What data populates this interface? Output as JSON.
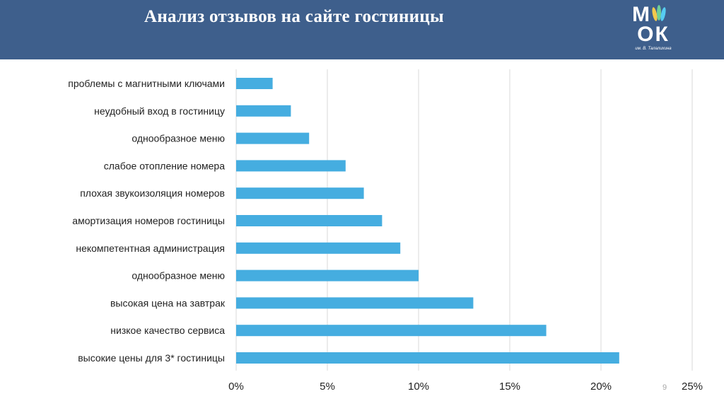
{
  "header": {
    "title": "Анализ отзывов на сайте гостиницы"
  },
  "logo": {
    "line1": "М",
    "line1b": "",
    "line2": "ОК",
    "subtitle": "им. В. Талалихина"
  },
  "page_number": "9",
  "colors": {
    "header_bg": "#3e5f8c",
    "bar": "#45ade0",
    "grid": "#d9d9d9"
  },
  "chart_data": {
    "type": "bar",
    "orientation": "horizontal",
    "categories": [
      "проблемы с магнитными ключами",
      "неудобный вход в гостиницу",
      "однообразное меню",
      "слабое отопление номера",
      "плохая звукоизоляция номеров",
      "амортизация номеров гостиницы",
      "некомпетентная администрация",
      "однообразное  меню",
      "высокая цена на завтрак",
      "низкое качество сервиса",
      "высокие цены  для 3* гостиницы"
    ],
    "values": [
      2,
      3,
      4,
      6,
      7,
      8,
      9,
      10,
      13,
      17,
      21
    ],
    "xlim": [
      0,
      25
    ],
    "xticks": [
      "0%",
      "5%",
      "10%",
      "15%",
      "20%",
      "25%"
    ],
    "xtick_values": [
      0,
      5,
      10,
      15,
      20,
      25
    ],
    "grid": true,
    "legend": "none"
  }
}
